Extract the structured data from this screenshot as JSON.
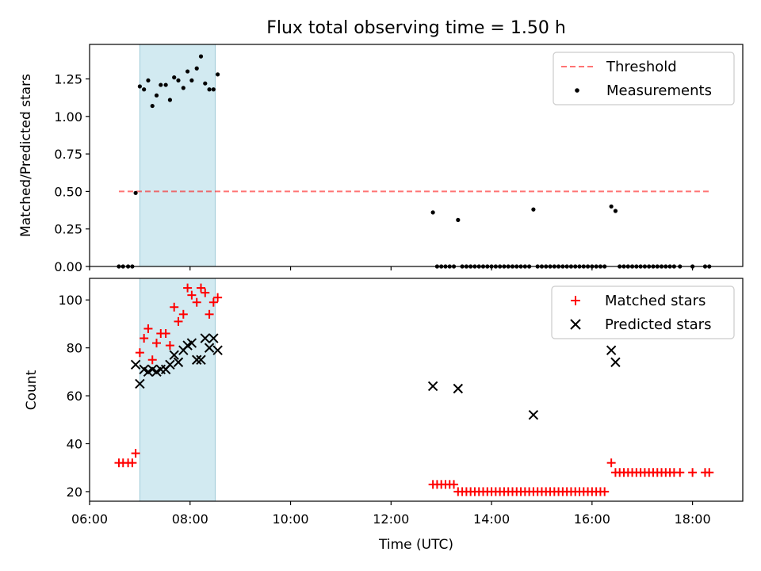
{
  "figure": {
    "title": "Flux total observing time = 1.50 h",
    "xlabel": "Time (UTC)",
    "x_tick_labels": [
      "06:00",
      "08:00",
      "10:00",
      "12:00",
      "14:00",
      "16:00",
      "18:00"
    ],
    "shaded_band_color": "#add8e6",
    "shaded_band_x": [
      "07:00",
      "08:30"
    ]
  },
  "chart_data": [
    {
      "type": "scatter",
      "panel": "top",
      "title": "Flux total observing time = 1.50 h",
      "xlabel": "",
      "ylabel": "Matched/Predicted stars",
      "xlim": [
        "06:00",
        "19:00"
      ],
      "ylim": [
        0,
        1.48
      ],
      "y_ticks": [
        0,
        0.25,
        0.5,
        0.75,
        1.0,
        1.25
      ],
      "y_tick_labels": [
        "0.00",
        "0.25",
        "0.50",
        "0.75",
        "1.00",
        "1.25"
      ],
      "legend_position": "top-right",
      "threshold": {
        "name": "Threshold",
        "y": 0.5,
        "x_range": [
          "06:35",
          "18:20"
        ],
        "color": "#ff0000",
        "style": "dashed"
      },
      "series": [
        {
          "name": "Measurements",
          "marker": "dot",
          "color": "#000000",
          "points": [
            [
              "06:35",
              0.0
            ],
            [
              "06:40",
              0.0
            ],
            [
              "06:46",
              0.0
            ],
            [
              "06:51",
              0.0
            ],
            [
              "06:55",
              0.49
            ],
            [
              "07:00",
              1.2
            ],
            [
              "07:05",
              1.18
            ],
            [
              "07:10",
              1.24
            ],
            [
              "07:15",
              1.07
            ],
            [
              "07:20",
              1.14
            ],
            [
              "07:25",
              1.21
            ],
            [
              "07:31",
              1.21
            ],
            [
              "07:36",
              1.11
            ],
            [
              "07:41",
              1.26
            ],
            [
              "07:46",
              1.24
            ],
            [
              "07:52",
              1.19
            ],
            [
              "07:57",
              1.3
            ],
            [
              "08:02",
              1.24
            ],
            [
              "08:08",
              1.32
            ],
            [
              "08:13",
              1.4
            ],
            [
              "08:18",
              1.22
            ],
            [
              "08:23",
              1.18
            ],
            [
              "08:28",
              1.18
            ],
            [
              "08:33",
              1.28
            ],
            [
              "12:50",
              0.36
            ],
            [
              "12:55",
              0.0
            ],
            [
              "13:00",
              0.0
            ],
            [
              "13:05",
              0.0
            ],
            [
              "13:10",
              0.0
            ],
            [
              "13:15",
              0.0
            ],
            [
              "13:20",
              0.31
            ],
            [
              "13:25",
              0.0
            ],
            [
              "13:30",
              0.0
            ],
            [
              "13:35",
              0.0
            ],
            [
              "13:40",
              0.0
            ],
            [
              "13:45",
              0.0
            ],
            [
              "13:50",
              0.0
            ],
            [
              "13:55",
              0.0
            ],
            [
              "14:00",
              0.0
            ],
            [
              "14:05",
              0.0
            ],
            [
              "14:10",
              0.0
            ],
            [
              "14:15",
              0.0
            ],
            [
              "14:20",
              0.0
            ],
            [
              "14:25",
              0.0
            ],
            [
              "14:30",
              0.0
            ],
            [
              "14:35",
              0.0
            ],
            [
              "14:40",
              0.0
            ],
            [
              "14:45",
              0.0
            ],
            [
              "14:50",
              0.38
            ],
            [
              "14:55",
              0.0
            ],
            [
              "15:00",
              0.0
            ],
            [
              "15:05",
              0.0
            ],
            [
              "15:10",
              0.0
            ],
            [
              "15:15",
              0.0
            ],
            [
              "15:20",
              0.0
            ],
            [
              "15:25",
              0.0
            ],
            [
              "15:30",
              0.0
            ],
            [
              "15:35",
              0.0
            ],
            [
              "15:40",
              0.0
            ],
            [
              "15:45",
              0.0
            ],
            [
              "15:50",
              0.0
            ],
            [
              "15:55",
              0.0
            ],
            [
              "16:00",
              0.0
            ],
            [
              "16:05",
              0.0
            ],
            [
              "16:10",
              0.0
            ],
            [
              "16:15",
              0.0
            ],
            [
              "16:23",
              0.4
            ],
            [
              "16:28",
              0.37
            ],
            [
              "16:33",
              0.0
            ],
            [
              "16:38",
              0.0
            ],
            [
              "16:43",
              0.0
            ],
            [
              "16:48",
              0.0
            ],
            [
              "16:53",
              0.0
            ],
            [
              "16:58",
              0.0
            ],
            [
              "17:03",
              0.0
            ],
            [
              "17:08",
              0.0
            ],
            [
              "17:13",
              0.0
            ],
            [
              "17:18",
              0.0
            ],
            [
              "17:23",
              0.0
            ],
            [
              "17:28",
              0.0
            ],
            [
              "17:33",
              0.0
            ],
            [
              "17:38",
              0.0
            ],
            [
              "17:45",
              0.0
            ],
            [
              "18:00",
              0.0
            ],
            [
              "18:15",
              0.0
            ],
            [
              "18:20",
              0.0
            ]
          ]
        }
      ]
    },
    {
      "type": "scatter",
      "panel": "bottom",
      "xlabel": "Time (UTC)",
      "ylabel": "Count",
      "xlim": [
        "06:00",
        "19:00"
      ],
      "ylim": [
        16,
        109
      ],
      "y_ticks": [
        20,
        40,
        60,
        80,
        100
      ],
      "y_tick_labels": [
        "20",
        "40",
        "60",
        "80",
        "100"
      ],
      "legend_position": "top-right",
      "series": [
        {
          "name": "Matched stars",
          "marker": "plus",
          "color": "#ff0000",
          "points": [
            [
              "06:35",
              32
            ],
            [
              "06:40",
              32
            ],
            [
              "06:46",
              32
            ],
            [
              "06:51",
              32
            ],
            [
              "06:55",
              36
            ],
            [
              "07:00",
              78
            ],
            [
              "07:05",
              84
            ],
            [
              "07:10",
              88
            ],
            [
              "07:15",
              75
            ],
            [
              "07:20",
              82
            ],
            [
              "07:25",
              86
            ],
            [
              "07:31",
              86
            ],
            [
              "07:36",
              81
            ],
            [
              "07:41",
              97
            ],
            [
              "07:46",
              91
            ],
            [
              "07:52",
              94
            ],
            [
              "07:57",
              105
            ],
            [
              "08:02",
              102
            ],
            [
              "08:08",
              99
            ],
            [
              "08:13",
              105
            ],
            [
              "08:18",
              103
            ],
            [
              "08:23",
              94
            ],
            [
              "08:28",
              99
            ],
            [
              "08:33",
              101
            ],
            [
              "12:50",
              23
            ],
            [
              "12:55",
              23
            ],
            [
              "13:00",
              23
            ],
            [
              "13:05",
              23
            ],
            [
              "13:10",
              23
            ],
            [
              "13:15",
              23
            ],
            [
              "13:20",
              20
            ],
            [
              "13:25",
              20
            ],
            [
              "13:30",
              20
            ],
            [
              "13:35",
              20
            ],
            [
              "13:40",
              20
            ],
            [
              "13:45",
              20
            ],
            [
              "13:50",
              20
            ],
            [
              "13:55",
              20
            ],
            [
              "14:00",
              20
            ],
            [
              "14:05",
              20
            ],
            [
              "14:10",
              20
            ],
            [
              "14:15",
              20
            ],
            [
              "14:20",
              20
            ],
            [
              "14:25",
              20
            ],
            [
              "14:30",
              20
            ],
            [
              "14:35",
              20
            ],
            [
              "14:40",
              20
            ],
            [
              "14:45",
              20
            ],
            [
              "14:50",
              20
            ],
            [
              "14:55",
              20
            ],
            [
              "15:00",
              20
            ],
            [
              "15:05",
              20
            ],
            [
              "15:10",
              20
            ],
            [
              "15:15",
              20
            ],
            [
              "15:20",
              20
            ],
            [
              "15:25",
              20
            ],
            [
              "15:30",
              20
            ],
            [
              "15:35",
              20
            ],
            [
              "15:40",
              20
            ],
            [
              "15:45",
              20
            ],
            [
              "15:50",
              20
            ],
            [
              "15:55",
              20
            ],
            [
              "16:00",
              20
            ],
            [
              "16:05",
              20
            ],
            [
              "16:10",
              20
            ],
            [
              "16:15",
              20
            ],
            [
              "16:23",
              32
            ],
            [
              "16:28",
              28
            ],
            [
              "16:33",
              28
            ],
            [
              "16:38",
              28
            ],
            [
              "16:43",
              28
            ],
            [
              "16:48",
              28
            ],
            [
              "16:53",
              28
            ],
            [
              "16:58",
              28
            ],
            [
              "17:03",
              28
            ],
            [
              "17:08",
              28
            ],
            [
              "17:13",
              28
            ],
            [
              "17:18",
              28
            ],
            [
              "17:23",
              28
            ],
            [
              "17:28",
              28
            ],
            [
              "17:33",
              28
            ],
            [
              "17:38",
              28
            ],
            [
              "17:45",
              28
            ],
            [
              "18:00",
              28
            ],
            [
              "18:15",
              28
            ],
            [
              "18:20",
              28
            ]
          ]
        },
        {
          "name": "Predicted stars",
          "marker": "x",
          "color": "#000000",
          "points": [
            [
              "06:55",
              73
            ],
            [
              "07:00",
              65
            ],
            [
              "07:05",
              71
            ],
            [
              "07:10",
              70
            ],
            [
              "07:15",
              71
            ],
            [
              "07:20",
              70
            ],
            [
              "07:25",
              71
            ],
            [
              "07:31",
              71
            ],
            [
              "07:36",
              73
            ],
            [
              "07:41",
              77
            ],
            [
              "07:46",
              74
            ],
            [
              "07:52",
              79
            ],
            [
              "07:57",
              81
            ],
            [
              "08:02",
              82
            ],
            [
              "08:08",
              75
            ],
            [
              "08:13",
              75
            ],
            [
              "08:18",
              84
            ],
            [
              "08:23",
              80
            ],
            [
              "08:28",
              84
            ],
            [
              "08:33",
              79
            ],
            [
              "12:50",
              64
            ],
            [
              "13:20",
              63
            ],
            [
              "14:50",
              52
            ],
            [
              "16:23",
              79
            ],
            [
              "16:28",
              74
            ]
          ]
        }
      ]
    }
  ]
}
